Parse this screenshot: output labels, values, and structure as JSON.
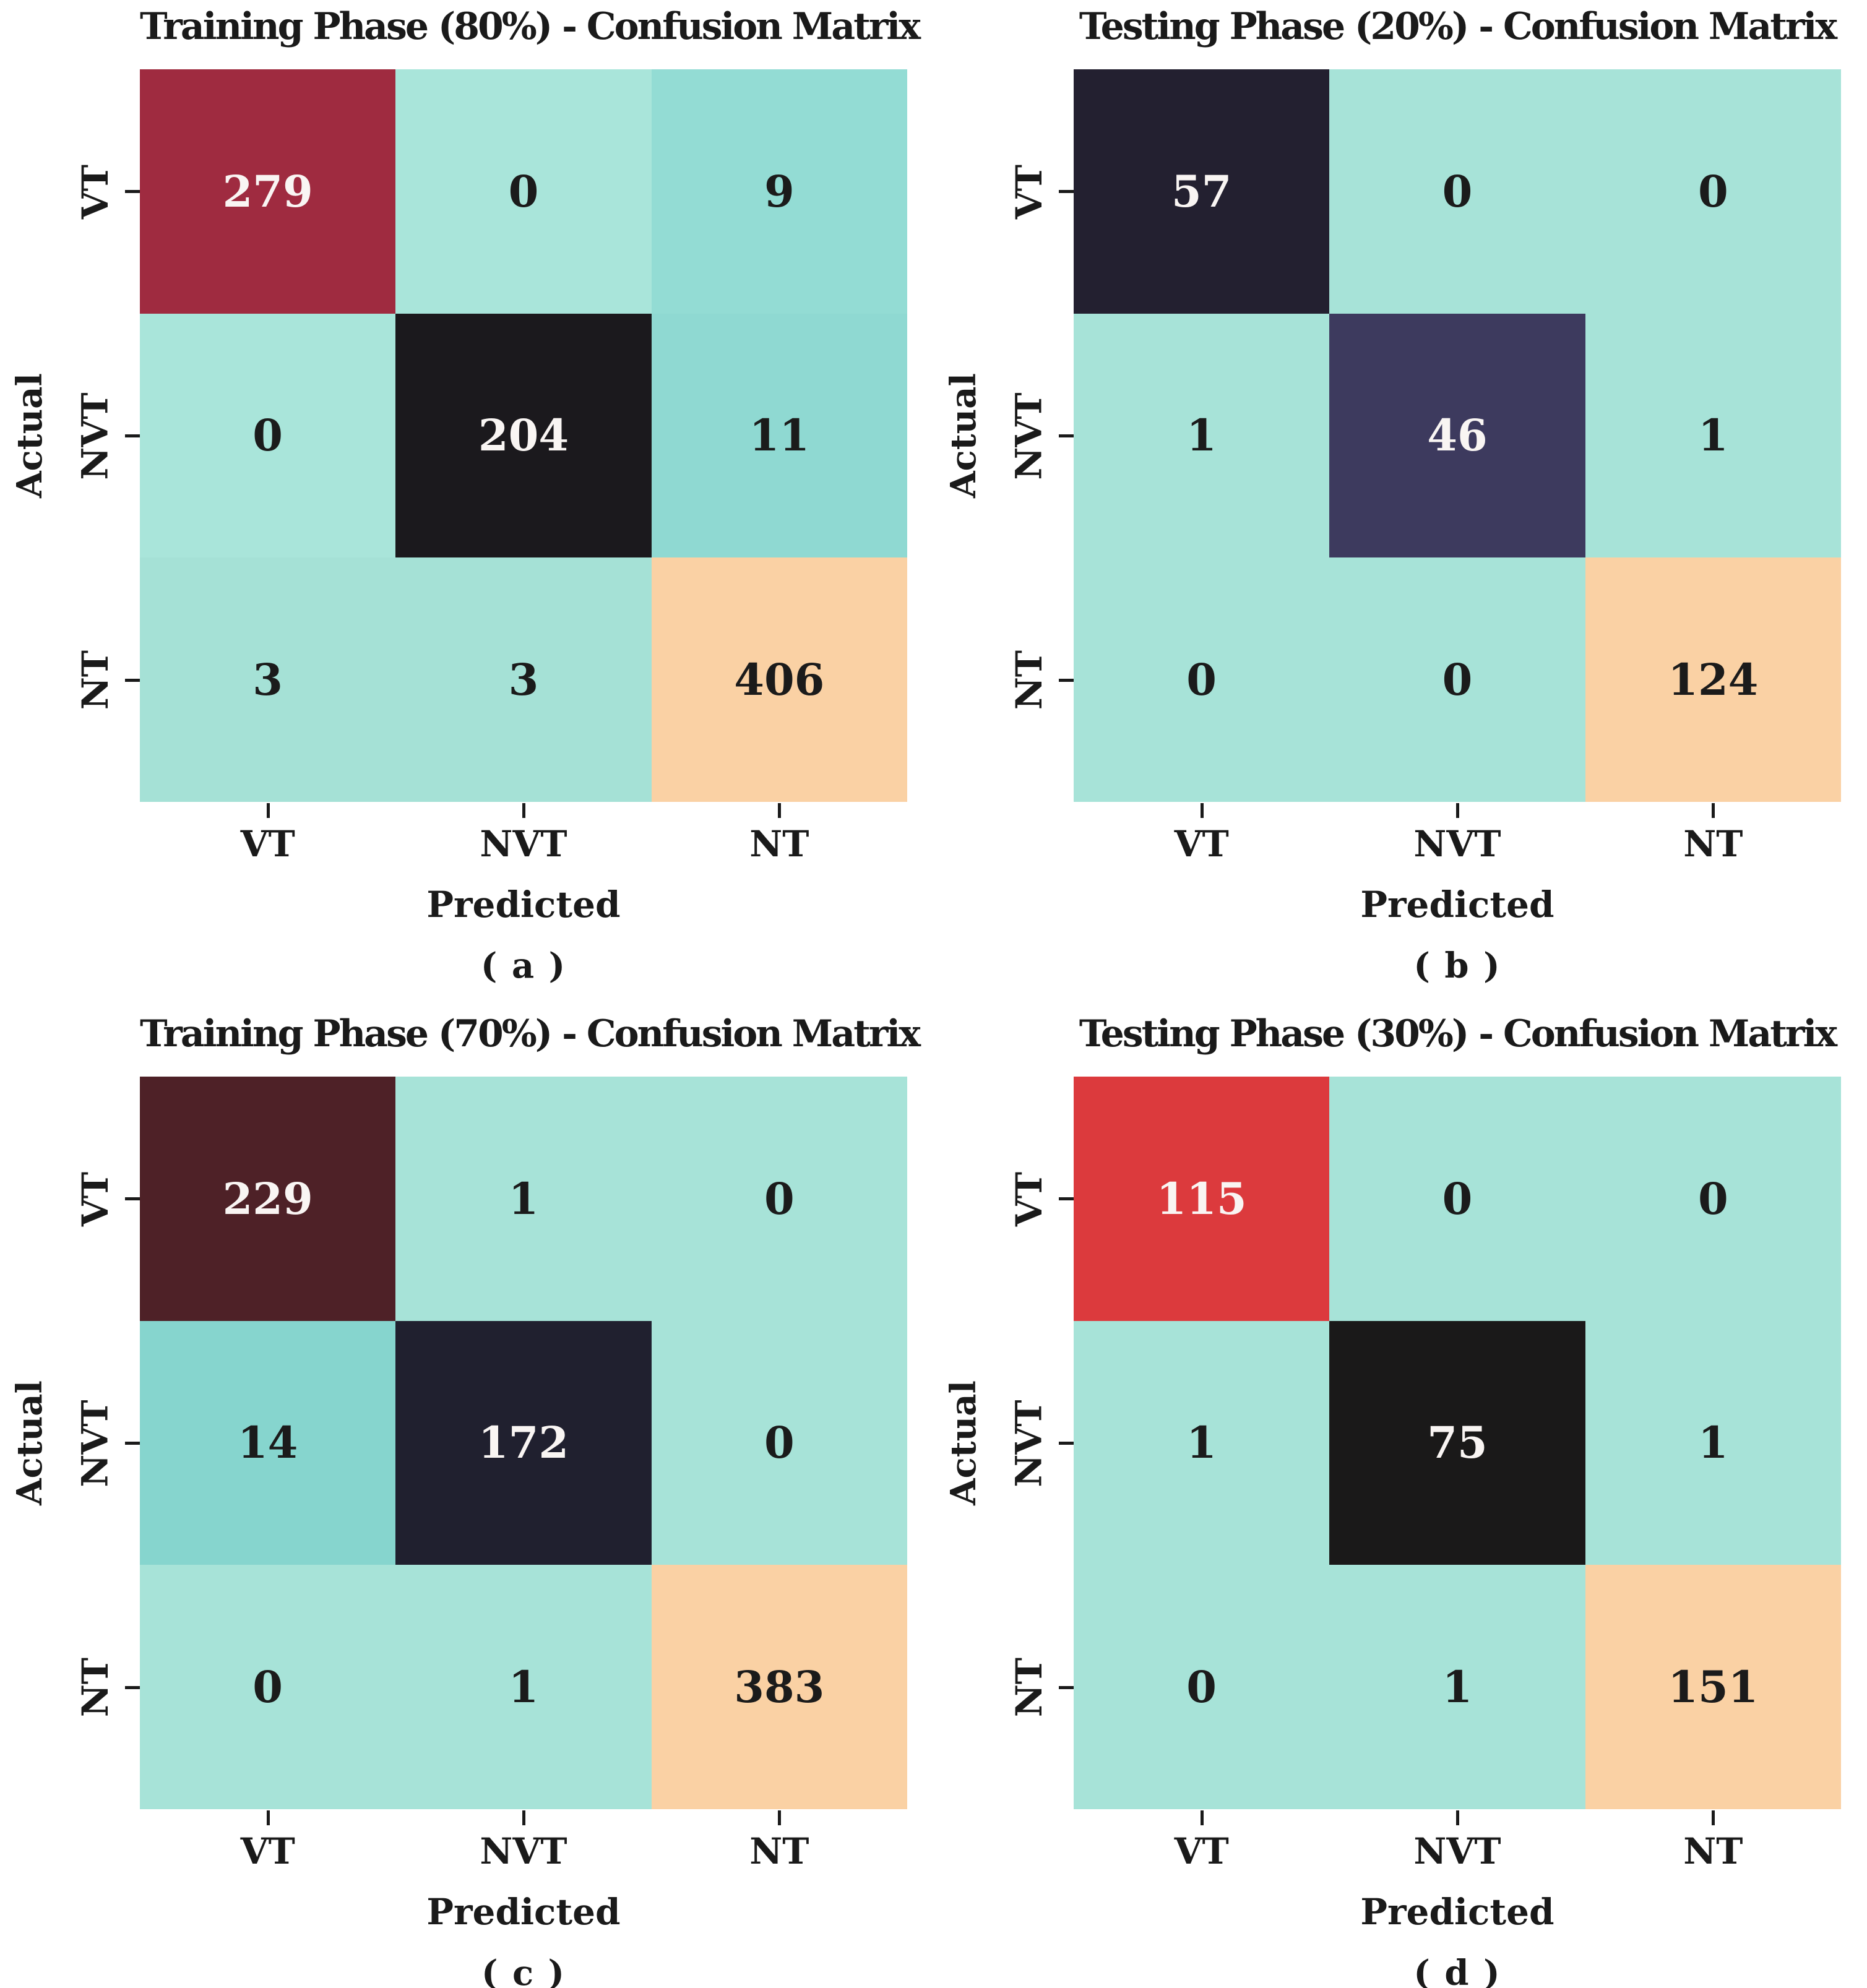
{
  "figure": {
    "background": "#FFFFFF",
    "text_color": "#1A1A1A",
    "light_text": "#F9F5F3",
    "dark_text": "#1B1B1B",
    "tick_color": "#1A1A1A"
  },
  "chart_data": [
    {
      "type": "heatmap",
      "panel_id": "a",
      "title": "Training Phase (80%) - Confusion Matrix",
      "caption": "( a )",
      "xlabel": "Predicted",
      "ylabel": "Actual",
      "x_ticklabels": [
        "VT",
        "NVT",
        "NT"
      ],
      "y_ticklabels": [
        "VT",
        "NVT",
        "NT"
      ],
      "matrix": [
        [
          279,
          0,
          9
        ],
        [
          0,
          204,
          11
        ],
        [
          3,
          3,
          406
        ]
      ],
      "cell_colors": [
        [
          "#9F2B40",
          "#A9E5DA",
          "#93DCD4"
        ],
        [
          "#A9E5DA",
          "#1B191D",
          "#8FD9D2"
        ],
        [
          "#A5E1D6",
          "#A5E1D6",
          "#FAD1A4"
        ]
      ],
      "value_text_colors": [
        [
          "light",
          "dark",
          "dark"
        ],
        [
          "dark",
          "light",
          "dark"
        ],
        [
          "dark",
          "dark",
          "dark"
        ]
      ]
    },
    {
      "type": "heatmap",
      "panel_id": "b",
      "title": "Testing Phase (20%) - Confusion Matrix",
      "caption": "( b )",
      "xlabel": "Predicted",
      "ylabel": "Actual",
      "x_ticklabels": [
        "VT",
        "NVT",
        "NT"
      ],
      "y_ticklabels": [
        "VT",
        "NVT",
        "NT"
      ],
      "matrix": [
        [
          57,
          0,
          0
        ],
        [
          1,
          46,
          1
        ],
        [
          0,
          0,
          124
        ]
      ],
      "cell_colors": [
        [
          "#232030",
          "#A7E3D8",
          "#A7E3D8"
        ],
        [
          "#A7E3D8",
          "#3D3A5E",
          "#A7E3D8"
        ],
        [
          "#A7E3D8",
          "#A7E3D8",
          "#FAD1A4"
        ]
      ],
      "value_text_colors": [
        [
          "light",
          "dark",
          "dark"
        ],
        [
          "dark",
          "light",
          "dark"
        ],
        [
          "dark",
          "dark",
          "dark"
        ]
      ]
    },
    {
      "type": "heatmap",
      "panel_id": "c",
      "title": "Training Phase (70%) - Confusion Matrix",
      "caption": "( c )",
      "xlabel": "Predicted",
      "ylabel": "Actual",
      "x_ticklabels": [
        "VT",
        "NVT",
        "NT"
      ],
      "y_ticklabels": [
        "VT",
        "NVT",
        "NT"
      ],
      "matrix": [
        [
          229,
          1,
          0
        ],
        [
          14,
          172,
          0
        ],
        [
          0,
          1,
          383
        ]
      ],
      "cell_colors": [
        [
          "#4E2127",
          "#A7E3D8",
          "#A7E3D8"
        ],
        [
          "#86D5CE",
          "#20202F",
          "#A7E3D8"
        ],
        [
          "#A7E3D8",
          "#A7E3D8",
          "#FAD1A4"
        ]
      ],
      "value_text_colors": [
        [
          "light",
          "dark",
          "dark"
        ],
        [
          "dark",
          "light",
          "dark"
        ],
        [
          "dark",
          "dark",
          "dark"
        ]
      ]
    },
    {
      "type": "heatmap",
      "panel_id": "d",
      "title": "Testing Phase (30%) - Confusion Matrix",
      "caption": "( d )",
      "xlabel": "Predicted",
      "ylabel": "Actual",
      "x_ticklabels": [
        "VT",
        "NVT",
        "NT"
      ],
      "y_ticklabels": [
        "VT",
        "NVT",
        "NT"
      ],
      "matrix": [
        [
          115,
          0,
          0
        ],
        [
          1,
          75,
          1
        ],
        [
          0,
          1,
          151
        ]
      ],
      "cell_colors": [
        [
          "#DC3A3D",
          "#A7E3D8",
          "#A7E3D8"
        ],
        [
          "#A7E3D8",
          "#1A1919",
          "#A7E3D8"
        ],
        [
          "#A7E3D8",
          "#A7E3D8",
          "#FAD1A4"
        ]
      ],
      "value_text_colors": [
        [
          "light",
          "dark",
          "dark"
        ],
        [
          "dark",
          "light",
          "dark"
        ],
        [
          "dark",
          "dark",
          "dark"
        ]
      ]
    }
  ]
}
